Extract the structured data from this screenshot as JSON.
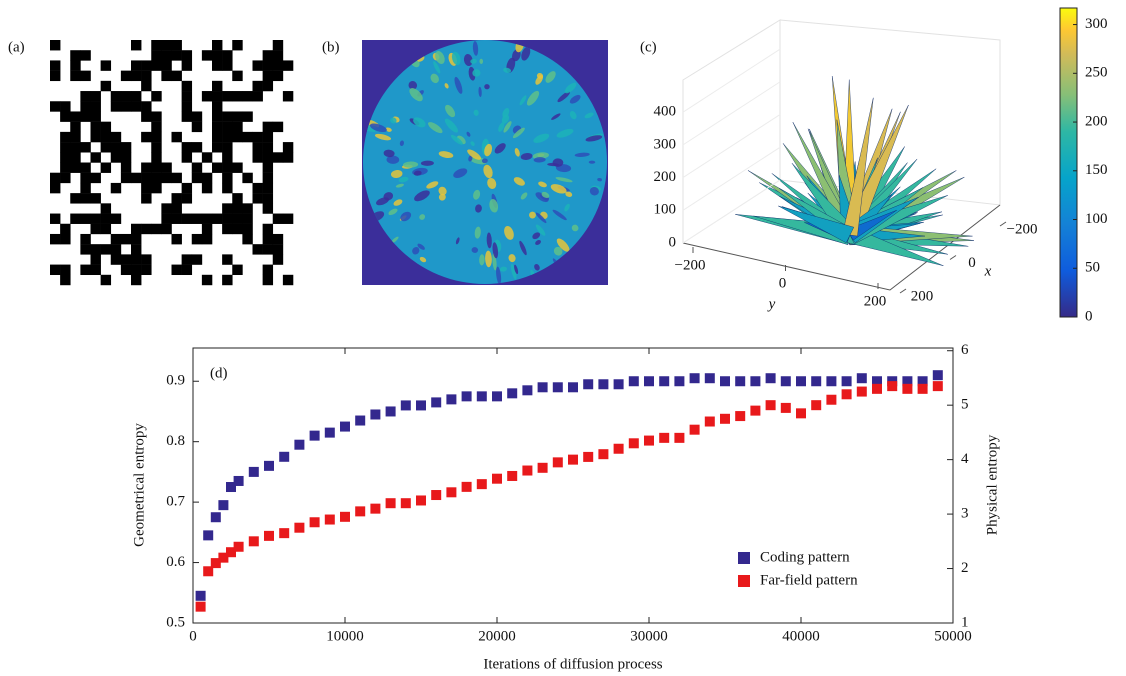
{
  "panels": [
    {
      "label": "(a)"
    },
    {
      "label": "(b)"
    },
    {
      "label": "(c)"
    }
  ],
  "surface_3d": {
    "zticks": [
      0,
      100,
      200,
      300,
      400
    ],
    "zlim": [
      0,
      480
    ],
    "yticks": [
      {
        "value": -200,
        "label": "−200"
      },
      0,
      200
    ],
    "ylim": [
      -200,
      200
    ],
    "xticks": [
      {
        "value": -200,
        "label": "−200"
      },
      0,
      200
    ],
    "xlim": [
      -200,
      200
    ],
    "xlabel": "x",
    "ylabel": "y"
  },
  "colorbar": {
    "lim": [
      0,
      317
    ],
    "ticks": [
      0,
      50,
      100,
      150,
      200,
      250,
      300
    ]
  },
  "chart_data": {
    "type": "scatter",
    "annotation": "(d)",
    "xlabel": "Iterations of diffusion process",
    "ylabel": "Geometrical entropy",
    "y2label": "Physical entropy",
    "xlim": [
      0,
      50000
    ],
    "xticks": [
      0,
      10000,
      20000,
      30000,
      40000,
      50000
    ],
    "ylim": [
      0.5,
      0.955
    ],
    "yticks": [
      0.5,
      0.6,
      0.7,
      0.8,
      0.9
    ],
    "y2lim": [
      1,
      6.05
    ],
    "y2ticks": [
      1,
      2,
      3,
      4,
      5,
      6
    ],
    "legend": "lower right",
    "x": [
      500,
      1000,
      1500,
      2000,
      2500,
      3000,
      4000,
      5000,
      6000,
      7000,
      8000,
      9000,
      10000,
      11000,
      12000,
      13000,
      14000,
      15000,
      16000,
      17000,
      18000,
      19000,
      20000,
      21000,
      22000,
      23000,
      24000,
      25000,
      26000,
      27000,
      28000,
      29000,
      30000,
      31000,
      32000,
      33000,
      34000,
      35000,
      36000,
      37000,
      38000,
      39000,
      40000,
      41000,
      42000,
      43000,
      44000,
      45000,
      46000,
      47000,
      48000,
      49000
    ],
    "series": [
      {
        "name": "Coding pattern",
        "color": "#33288e",
        "values": [
          0.545,
          0.645,
          0.675,
          0.695,
          0.725,
          0.735,
          0.75,
          0.76,
          0.775,
          0.795,
          0.81,
          0.815,
          0.825,
          0.835,
          0.845,
          0.85,
          0.86,
          0.86,
          0.865,
          0.87,
          0.875,
          0.875,
          0.875,
          0.88,
          0.885,
          0.89,
          0.89,
          0.89,
          0.895,
          0.895,
          0.895,
          0.9,
          0.9,
          0.9,
          0.9,
          0.905,
          0.905,
          0.9,
          0.9,
          0.9,
          0.905,
          0.9,
          0.9,
          0.9,
          0.9,
          0.9,
          0.905,
          0.9,
          0.9,
          0.9,
          0.9,
          0.91
        ]
      },
      {
        "name": "Far-field pattern",
        "color": "#e8191b",
        "axis": "y2",
        "values": [
          1.3,
          1.95,
          2.1,
          2.2,
          2.3,
          2.4,
          2.5,
          2.6,
          2.65,
          2.75,
          2.85,
          2.9,
          2.95,
          3.05,
          3.1,
          3.2,
          3.2,
          3.25,
          3.35,
          3.4,
          3.5,
          3.55,
          3.65,
          3.7,
          3.8,
          3.85,
          3.95,
          4.0,
          4.05,
          4.1,
          4.2,
          4.3,
          4.35,
          4.4,
          4.4,
          4.55,
          4.7,
          4.75,
          4.8,
          4.9,
          5.0,
          4.95,
          4.85,
          5.0,
          5.1,
          5.2,
          5.25,
          5.3,
          5.35,
          5.3,
          5.3,
          5.35
        ]
      }
    ]
  }
}
